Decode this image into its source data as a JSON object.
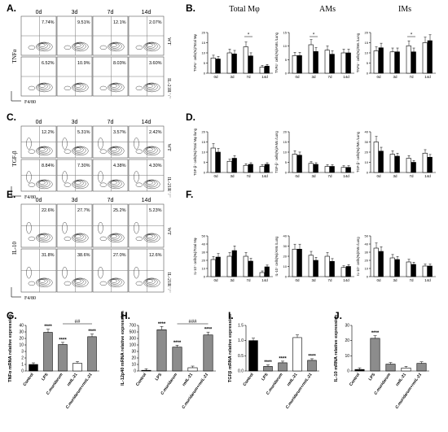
{
  "panels": {
    "A": "A.",
    "B": "B.",
    "C": "C.",
    "D": "D.",
    "E": "E.",
    "F": "F.",
    "G": "G.",
    "H": "H.",
    "I": "I.",
    "J": "J."
  },
  "flow": {
    "days": [
      "0d",
      "3d",
      "7d",
      "14d"
    ],
    "groups": [
      "WT",
      "IL-21R⁻/⁻"
    ],
    "xlabel": "F4/80",
    "A": {
      "ylabel": "TNFα",
      "pct": [
        [
          "7.74%",
          "9.51%",
          "12.1%",
          "2.07%"
        ],
        [
          "6.52%",
          "10.9%",
          "8.03%",
          "3.60%"
        ]
      ]
    },
    "C": {
      "ylabel": "TGF-β",
      "pct": [
        [
          "12.2%",
          "5.31%",
          "3.57%",
          "2.42%"
        ],
        [
          "8.84%",
          "7.30%",
          "4.38%",
          "4.30%"
        ]
      ]
    },
    "E": {
      "ylabel": "IL-10",
      "pct": [
        [
          "22.6%",
          "27.7%",
          "25.2%",
          "5.23%"
        ],
        [
          "31.8%",
          "38.6%",
          "27.0%",
          "12.6%"
        ]
      ]
    }
  },
  "bars_top": {
    "titles": [
      "Total Mφ",
      "AMs",
      "IMs"
    ],
    "xcats": [
      "0d",
      "3d",
      "7d",
      "14d"
    ],
    "B": {
      "ylabels": [
        "TNFα⁺ cells(%)/Total Mφ",
        "TNFα⁺ cells(%)/AMs /Lung",
        "TNFα⁺ cells(%)/IMs /Lung"
      ],
      "yticks": [
        [
          "0",
          "5",
          "10",
          "15",
          "20"
        ],
        [
          "0",
          "5",
          "10",
          "15"
        ],
        [
          "0",
          "5",
          "10",
          "15",
          "20"
        ]
      ],
      "ymax": [
        20,
        15,
        20
      ],
      "wt": [
        [
          7.5,
          10,
          13,
          3
        ],
        [
          6.5,
          10.5,
          8.5,
          7.5
        ],
        [
          11,
          10.5,
          13.5,
          15
        ]
      ],
      "ko": [
        [
          7,
          9.5,
          8.5,
          3.5
        ],
        [
          6.5,
          8,
          7,
          7.5
        ],
        [
          12.5,
          10.5,
          10.5,
          16
        ]
      ],
      "sig": [
        "*",
        "*",
        "*"
      ]
    },
    "D": {
      "ylabels": [
        "TGF-β⁺ cells(%)/Total Mφ /lung",
        "TGF-β⁺ cells(%)/AMs /Lung",
        "TGF-β⁺ cells(%)/IMs /Lung"
      ],
      "yticks": [
        [
          "0",
          "5",
          "10",
          "15",
          "20"
        ],
        [
          "0",
          "5",
          "10",
          "15",
          "20"
        ],
        [
          "0",
          "10",
          "20",
          "30",
          "40"
        ]
      ],
      "ymax": [
        20,
        20,
        40
      ],
      "wt": [
        [
          12,
          5.5,
          3.5,
          3
        ],
        [
          9,
          4.5,
          3,
          2.5
        ],
        [
          30,
          18,
          14,
          19
        ]
      ],
      "ko": [
        [
          10,
          7,
          4,
          4
        ],
        [
          8.5,
          4,
          3,
          2.5
        ],
        [
          21,
          16,
          10,
          15
        ]
      ]
    },
    "F": {
      "ylabels": [
        "IL-10⁺ cells(%)/Total Mφ",
        "IL-10⁺ cells(%)/AMs /Lung",
        "IL-10⁺ cells(%)/IMs /Lung"
      ],
      "yticks": [
        [
          "0",
          "10",
          "20",
          "30",
          "40",
          "50"
        ],
        [
          "0",
          "10",
          "20",
          "30",
          "40"
        ],
        [
          "0",
          "10",
          "20",
          "30",
          "40",
          "50"
        ]
      ],
      "ymax": [
        50,
        40,
        50
      ],
      "wt": [
        [
          21,
          25,
          25,
          5
        ],
        [
          27,
          21,
          20,
          9
        ],
        [
          35,
          23,
          18,
          13
        ]
      ],
      "ko": [
        [
          24,
          32,
          19,
          12
        ],
        [
          27,
          16,
          15,
          10
        ],
        [
          31,
          21,
          15,
          13
        ]
      ]
    }
  },
  "bars_bottom": {
    "cats": [
      "Control",
      "LPS",
      "C.muridarum",
      "rmIL-21",
      "C.muridarum+rmIL-21"
    ],
    "G": {
      "ylabel": "TNFα mRNA relative expression",
      "yticks": [
        "0",
        "1",
        "2",
        "3",
        "10",
        "20",
        "30",
        "40"
      ],
      "values": [
        1,
        32,
        18,
        1.2,
        27
      ],
      "sig": [
        "",
        "****",
        "****",
        "",
        "****"
      ],
      "hash": "##"
    },
    "H": {
      "ylabel": "IL-12p40 mRNA relative expression",
      "yticks": [
        "0",
        "10",
        "20",
        "30",
        "100",
        "300",
        "500",
        "700"
      ],
      "values": [
        1,
        600,
        200,
        5,
        480
      ],
      "sig": [
        "",
        "****",
        "****",
        "",
        "****"
      ],
      "hash": "###"
    },
    "I": {
      "ylabel": "TGFβ mRNA relative expression",
      "yticks": [
        "0.0",
        "0.5",
        "1.0",
        "1.5"
      ],
      "values": [
        1.0,
        0.15,
        0.27,
        1.1,
        0.35
      ],
      "sig": [
        "",
        "****",
        "****",
        "",
        "****"
      ]
    },
    "J": {
      "ylabel": "IL-10 mRNA relative expression",
      "yticks": [
        "0",
        "10",
        "20",
        "30"
      ],
      "values": [
        1,
        21.5,
        4.5,
        2,
        5
      ],
      "sig": [
        "",
        "****",
        "",
        "",
        ""
      ]
    }
  },
  "colors": {
    "white_bar": "#ffffff",
    "black_bar": "#000000",
    "gray_bar": "#8c8c8c"
  }
}
